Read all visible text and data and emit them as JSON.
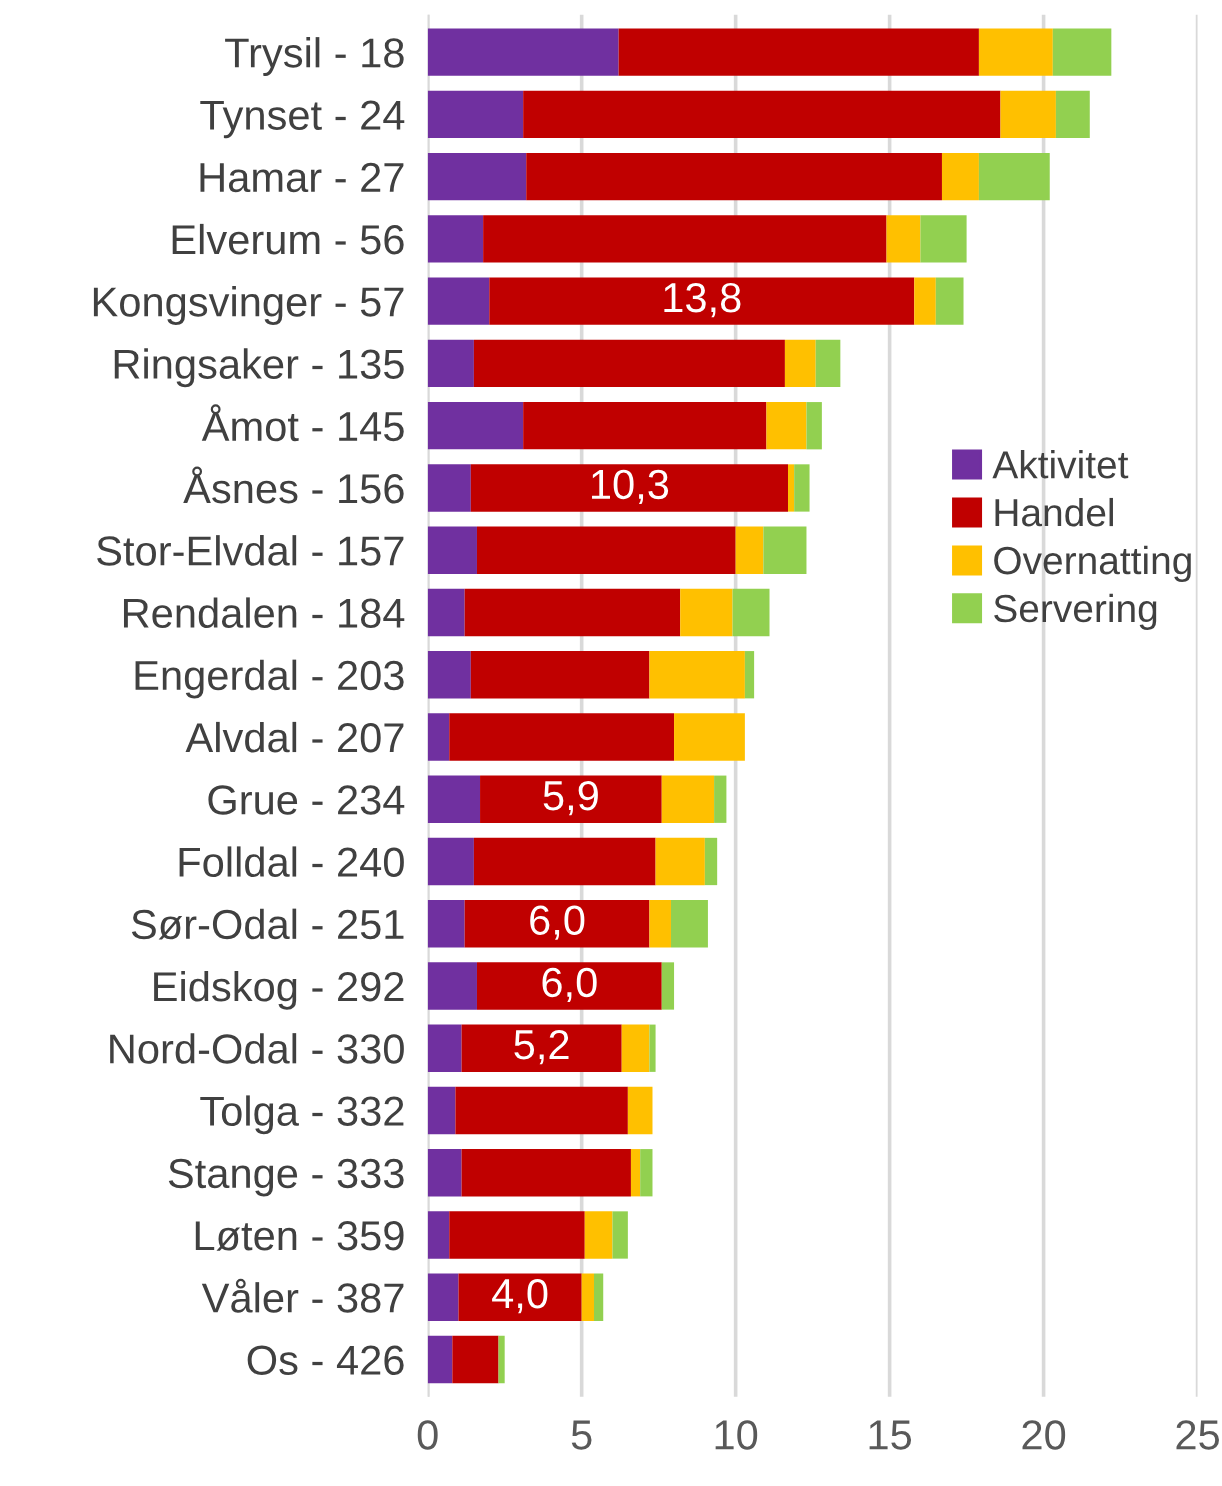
{
  "chart_data": {
    "type": "bar",
    "orientation": "horizontal",
    "stacked": true,
    "categories": [
      "Trysil - 18",
      "Tynset - 24",
      "Hamar - 27",
      "Elverum - 56",
      "Kongsvinger - 57",
      "Ringsaker - 135",
      "Åmot - 145",
      "Åsnes - 156",
      "Stor-Elvdal - 157",
      "Rendalen - 184",
      "Engerdal - 203",
      "Alvdal - 207",
      "Grue - 234",
      "Folldal - 240",
      "Sør-Odal - 251",
      "Eidskog - 292",
      "Nord-Odal - 330",
      "Tolga - 332",
      "Stange - 333",
      "Løten - 359",
      "Våler - 387",
      "Os - 426"
    ],
    "series": [
      {
        "name": "Aktivitet",
        "color": "#7030a0",
        "values": [
          6.2,
          3.1,
          3.2,
          1.8,
          2.0,
          1.5,
          3.1,
          1.4,
          1.6,
          1.2,
          1.4,
          0.7,
          1.7,
          1.5,
          1.2,
          1.6,
          1.1,
          0.9,
          1.1,
          0.7,
          1.0,
          0.8
        ]
      },
      {
        "name": "Handel",
        "color": "#c00000",
        "values": [
          11.7,
          15.5,
          13.5,
          13.1,
          13.8,
          10.1,
          7.9,
          10.3,
          8.4,
          7.0,
          5.8,
          7.3,
          5.9,
          5.9,
          6.0,
          6.0,
          5.2,
          5.6,
          5.5,
          4.4,
          4.0,
          1.5
        ],
        "value_labels": [
          null,
          null,
          null,
          null,
          "13,8",
          null,
          null,
          "10,3",
          null,
          null,
          null,
          null,
          "5,9",
          null,
          "6,0",
          "6,0",
          "5,2",
          null,
          null,
          null,
          "4,0",
          null
        ]
      },
      {
        "name": "Overnatting",
        "color": "#ffc000",
        "values": [
          2.4,
          1.8,
          1.2,
          1.1,
          0.7,
          1.0,
          1.3,
          0.2,
          0.9,
          1.7,
          3.1,
          2.3,
          1.7,
          1.6,
          0.7,
          0,
          0.9,
          0.8,
          0.3,
          0.9,
          0.4,
          0
        ]
      },
      {
        "name": "Servering",
        "color": "#92d050",
        "values": [
          1.9,
          1.1,
          2.3,
          1.5,
          0.9,
          0.8,
          0.5,
          0.5,
          1.4,
          1.2,
          0.3,
          0,
          0.4,
          0.4,
          1.2,
          0.4,
          0.2,
          0,
          0.4,
          0.5,
          0.3,
          0.2
        ]
      }
    ],
    "xlim": [
      0,
      25
    ],
    "xticks": [
      0,
      5,
      10,
      15,
      20,
      25
    ],
    "grid": "x",
    "legend": "right"
  }
}
